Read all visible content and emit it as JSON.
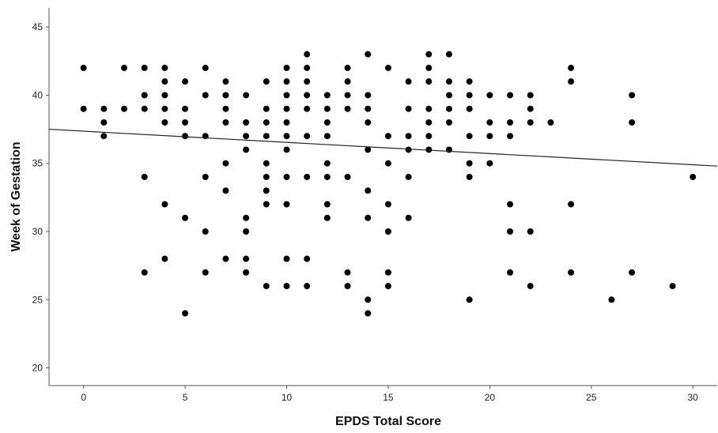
{
  "chart_data": {
    "type": "scatter",
    "title": "",
    "xlabel": "EPDS Total Score",
    "ylabel": "Week of Gestation",
    "xlim": [
      -1.7,
      31.2
    ],
    "ylim": [
      18.7,
      46.4
    ],
    "x_ticks": [
      0,
      5,
      10,
      15,
      20,
      25,
      30
    ],
    "y_ticks": [
      20,
      25,
      30,
      35,
      40,
      45
    ],
    "grid": false,
    "legend": "none",
    "colors": {
      "points": "#000000",
      "fit_line": "#222222",
      "axis": "#555555"
    },
    "fit_line": {
      "x": [
        -1.7,
        31.2
      ],
      "y": [
        37.5,
        34.8
      ]
    },
    "series": [
      {
        "points": [
          [
            0,
            42
          ],
          [
            0,
            39
          ],
          [
            1,
            39
          ],
          [
            1,
            38
          ],
          [
            1,
            37
          ],
          [
            2,
            42
          ],
          [
            2,
            39
          ],
          [
            3,
            42
          ],
          [
            3,
            40
          ],
          [
            3,
            39
          ],
          [
            3,
            34
          ],
          [
            3,
            27
          ],
          [
            4,
            42
          ],
          [
            4,
            41
          ],
          [
            4,
            40
          ],
          [
            4,
            39
          ],
          [
            4,
            38
          ],
          [
            4,
            32
          ],
          [
            4,
            28
          ],
          [
            5,
            41
          ],
          [
            5,
            39
          ],
          [
            5,
            38
          ],
          [
            5,
            37
          ],
          [
            5,
            31
          ],
          [
            5,
            24
          ],
          [
            6,
            42
          ],
          [
            6,
            40
          ],
          [
            6,
            37
          ],
          [
            6,
            34
          ],
          [
            6,
            30
          ],
          [
            6,
            27
          ],
          [
            7,
            41
          ],
          [
            7,
            40
          ],
          [
            7,
            39
          ],
          [
            7,
            38
          ],
          [
            7,
            35
          ],
          [
            7,
            33
          ],
          [
            7,
            28
          ],
          [
            8,
            40
          ],
          [
            8,
            38
          ],
          [
            8,
            37
          ],
          [
            8,
            36
          ],
          [
            8,
            31
          ],
          [
            8,
            30
          ],
          [
            8,
            28
          ],
          [
            8,
            27
          ],
          [
            9,
            41
          ],
          [
            9,
            39
          ],
          [
            9,
            38
          ],
          [
            9,
            37
          ],
          [
            9,
            35
          ],
          [
            9,
            34
          ],
          [
            9,
            33
          ],
          [
            9,
            32
          ],
          [
            9,
            26
          ],
          [
            10,
            42
          ],
          [
            10,
            41
          ],
          [
            10,
            40
          ],
          [
            10,
            39
          ],
          [
            10,
            38
          ],
          [
            10,
            37
          ],
          [
            10,
            36
          ],
          [
            10,
            34
          ],
          [
            10,
            32
          ],
          [
            10,
            28
          ],
          [
            10,
            26
          ],
          [
            11,
            43
          ],
          [
            11,
            42
          ],
          [
            11,
            41
          ],
          [
            11,
            40
          ],
          [
            11,
            39
          ],
          [
            11,
            37
          ],
          [
            11,
            34
          ],
          [
            11,
            28
          ],
          [
            11,
            26
          ],
          [
            12,
            40
          ],
          [
            12,
            39
          ],
          [
            12,
            38
          ],
          [
            12,
            37
          ],
          [
            12,
            35
          ],
          [
            12,
            34
          ],
          [
            12,
            32
          ],
          [
            12,
            31
          ],
          [
            13,
            42
          ],
          [
            13,
            41
          ],
          [
            13,
            40
          ],
          [
            13,
            39
          ],
          [
            13,
            34
          ],
          [
            13,
            27
          ],
          [
            13,
            26
          ],
          [
            14,
            43
          ],
          [
            14,
            40
          ],
          [
            14,
            39
          ],
          [
            14,
            38
          ],
          [
            14,
            36
          ],
          [
            14,
            33
          ],
          [
            14,
            31
          ],
          [
            14,
            25
          ],
          [
            14,
            24
          ],
          [
            15,
            42
          ],
          [
            15,
            37
          ],
          [
            15,
            35
          ],
          [
            15,
            32
          ],
          [
            15,
            30
          ],
          [
            15,
            27
          ],
          [
            15,
            26
          ],
          [
            16,
            41
          ],
          [
            16,
            39
          ],
          [
            16,
            37
          ],
          [
            16,
            36
          ],
          [
            16,
            34
          ],
          [
            16,
            31
          ],
          [
            17,
            43
          ],
          [
            17,
            42
          ],
          [
            17,
            41
          ],
          [
            17,
            39
          ],
          [
            17,
            38
          ],
          [
            17,
            37
          ],
          [
            17,
            36
          ],
          [
            18,
            43
          ],
          [
            18,
            41
          ],
          [
            18,
            40
          ],
          [
            18,
            39
          ],
          [
            18,
            38
          ],
          [
            18,
            36
          ],
          [
            19,
            41
          ],
          [
            19,
            40
          ],
          [
            19,
            39
          ],
          [
            19,
            37
          ],
          [
            19,
            35
          ],
          [
            19,
            34
          ],
          [
            19,
            25
          ],
          [
            20,
            40
          ],
          [
            20,
            38
          ],
          [
            20,
            37
          ],
          [
            20,
            35
          ],
          [
            21,
            40
          ],
          [
            21,
            38
          ],
          [
            21,
            37
          ],
          [
            21,
            32
          ],
          [
            21,
            30
          ],
          [
            21,
            27
          ],
          [
            22,
            40
          ],
          [
            22,
            39
          ],
          [
            22,
            38
          ],
          [
            22,
            30
          ],
          [
            22,
            26
          ],
          [
            23,
            38
          ],
          [
            24,
            42
          ],
          [
            24,
            41
          ],
          [
            24,
            32
          ],
          [
            24,
            27
          ],
          [
            26,
            25
          ],
          [
            27,
            40
          ],
          [
            27,
            38
          ],
          [
            27,
            27
          ],
          [
            29,
            26
          ],
          [
            30,
            34
          ]
        ]
      }
    ]
  }
}
